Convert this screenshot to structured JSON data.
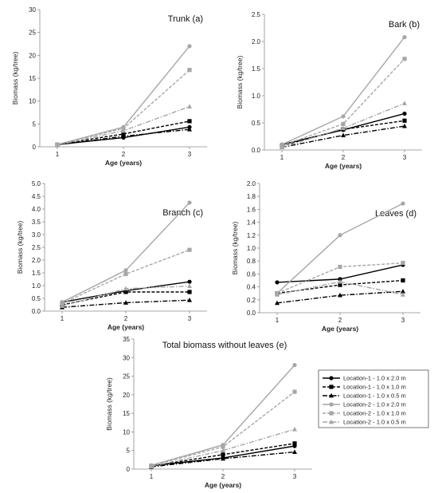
{
  "styles": [
    {
      "color": "#000000",
      "dash": "",
      "marker": "circle"
    },
    {
      "color": "#000000",
      "dash": "4,2",
      "marker": "square"
    },
    {
      "color": "#000000",
      "dash": "6,2,1.5,2",
      "marker": "triangle"
    },
    {
      "color": "#a6a6a6",
      "dash": "",
      "marker": "circle"
    },
    {
      "color": "#a6a6a6",
      "dash": "4,2",
      "marker": "square"
    },
    {
      "color": "#a6a6a6",
      "dash": "6,2,1.5,2",
      "marker": "triangle"
    }
  ],
  "legend": [
    "Location-1 - 1.0 x 2.0 m",
    "Location-1 - 1.0 x 1.0 m",
    "Location-1 - 1.0 x 0.5 m",
    "Location-2 - 1.0 x 2.0 m",
    "Location-2 - 1.0 x 1.0 m",
    "Location-2 - 1.0 x 0.5 m"
  ],
  "chart_data": [
    {
      "type": "line",
      "title": "Trunk (a)",
      "xlabel": "Age (years)",
      "ylabel": "Biomass (kg/tree)",
      "x": [
        1,
        2,
        3
      ],
      "xticks": [
        "1",
        "2",
        "3"
      ],
      "ylim": [
        0,
        30
      ],
      "yticks": [
        "0",
        "5",
        "10",
        "15",
        "20",
        "25",
        "30"
      ],
      "series": [
        {
          "values": [
            0.5,
            2.0,
            4.3
          ]
        },
        {
          "values": [
            0.5,
            2.8,
            5.6
          ]
        },
        {
          "values": [
            0.4,
            2.3,
            3.8
          ]
        },
        {
          "values": [
            0.5,
            4.3,
            22.0
          ]
        },
        {
          "values": [
            0.5,
            4.0,
            16.8
          ]
        },
        {
          "values": [
            0.4,
            3.5,
            8.8
          ]
        }
      ]
    },
    {
      "type": "line",
      "title": "Bark (b)",
      "xlabel": "Age (years)",
      "ylabel": "Biomass (kg/tree)",
      "x": [
        1,
        2,
        3
      ],
      "xticks": [
        "1",
        "2",
        "3"
      ],
      "ylim": [
        0,
        2.5
      ],
      "yticks": [
        "0.0",
        "0.5",
        "1.0",
        "1.5",
        "2.0",
        "2.5"
      ],
      "series": [
        {
          "values": [
            0.1,
            0.37,
            0.67
          ]
        },
        {
          "values": [
            0.08,
            0.38,
            0.54
          ]
        },
        {
          "values": [
            0.05,
            0.27,
            0.44
          ]
        },
        {
          "values": [
            0.1,
            0.62,
            2.08
          ]
        },
        {
          "values": [
            0.08,
            0.48,
            1.68
          ]
        },
        {
          "values": [
            0.05,
            0.4,
            0.86
          ]
        }
      ]
    },
    {
      "type": "line",
      "title": "Branch (c)",
      "xlabel": "Age (years)",
      "ylabel": "Biomass (kg/tree)",
      "x": [
        1,
        2,
        3
      ],
      "xticks": [
        "1",
        "2",
        "3"
      ],
      "ylim": [
        0,
        5
      ],
      "yticks": [
        "0.0",
        "0.5",
        "1.0",
        "1.5",
        "2.0",
        "2.5",
        "3.0",
        "3.5",
        "4.0",
        "4.5",
        "5.0"
      ],
      "series": [
        {
          "values": [
            0.35,
            0.8,
            1.15
          ]
        },
        {
          "values": [
            0.25,
            0.75,
            0.75
          ]
        },
        {
          "values": [
            0.15,
            0.33,
            0.43
          ]
        },
        {
          "values": [
            0.35,
            1.6,
            4.25
          ]
        },
        {
          "values": [
            0.3,
            1.45,
            2.4
          ]
        },
        {
          "values": [
            0.2,
            0.88,
            0.98
          ]
        }
      ]
    },
    {
      "type": "line",
      "title": "Leaves (d)",
      "xlabel": "Age (years)",
      "ylabel": "Biomass (kg/tree)",
      "x": [
        1,
        2,
        3
      ],
      "xticks": [
        "1",
        "2",
        "3"
      ],
      "ylim": [
        0,
        2
      ],
      "yticks": [
        "0.0",
        "0.2",
        "0.4",
        "0.6",
        "0.8",
        "1.0",
        "1.2",
        "1.4",
        "1.6",
        "1.8",
        "2.0"
      ],
      "series": [
        {
          "values": [
            0.47,
            0.52,
            0.74
          ]
        },
        {
          "values": [
            0.3,
            0.43,
            0.5
          ]
        },
        {
          "values": [
            0.15,
            0.27,
            0.33
          ]
        },
        {
          "values": [
            0.3,
            1.2,
            1.69
          ]
        },
        {
          "values": [
            0.3,
            0.71,
            0.77
          ]
        },
        {
          "values": [
            0.28,
            0.48,
            0.28
          ]
        }
      ]
    },
    {
      "type": "line",
      "title": "Total biomass without leaves (e)",
      "xlabel": "Age (years)",
      "ylabel": "Biomass (kg/tree)",
      "x": [
        1,
        2,
        3
      ],
      "xticks": [
        "1",
        "2",
        "3"
      ],
      "ylim": [
        0,
        35
      ],
      "yticks": [
        "0",
        "5",
        "10",
        "15",
        "20",
        "25",
        "30",
        "35"
      ],
      "series": [
        {
          "values": [
            0.9,
            3.0,
            6.2
          ]
        },
        {
          "values": [
            0.8,
            3.9,
            6.9
          ]
        },
        {
          "values": [
            0.6,
            2.8,
            4.6
          ]
        },
        {
          "values": [
            1.0,
            6.5,
            28.0
          ]
        },
        {
          "values": [
            0.9,
            6.0,
            20.8
          ]
        },
        {
          "values": [
            0.7,
            5.0,
            10.7
          ]
        }
      ]
    }
  ]
}
